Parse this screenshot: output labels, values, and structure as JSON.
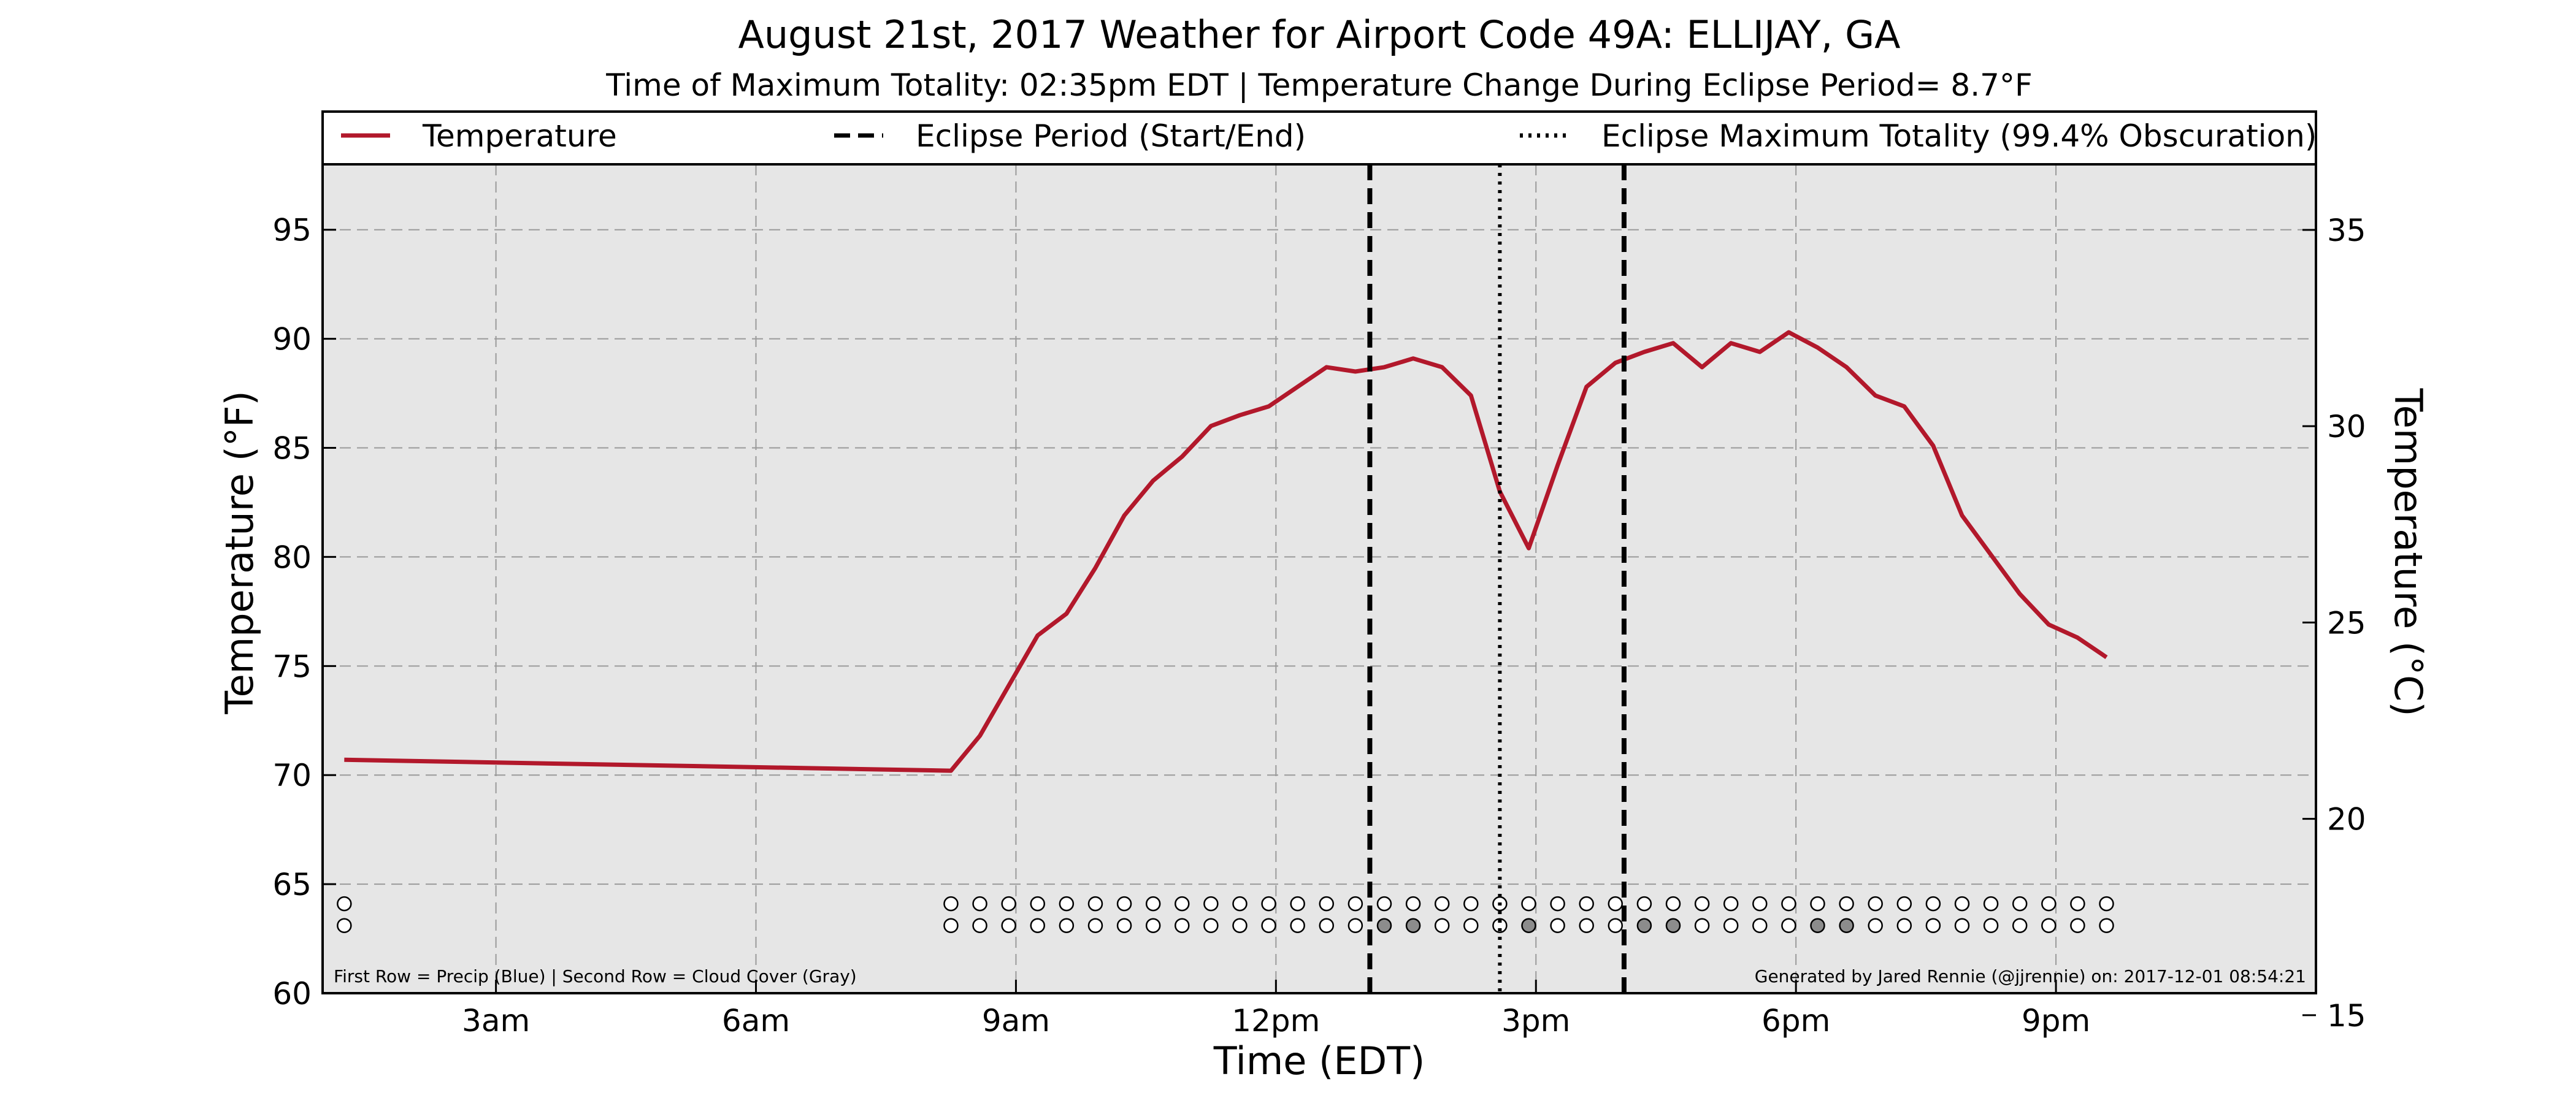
{
  "colors": {
    "background": "#ffffff",
    "plot_bg": "#e6e6e6",
    "temperature": "#b2182b",
    "grid": "#9a9a9a",
    "cloud_filled": "#8c8c8c"
  },
  "chart_data": {
    "type": "line",
    "title": "August 21st, 2017 Weather for Airport Code 49A: ELLIJAY, GA",
    "subtitle": "Time of Maximum Totality: 02:35pm EDT | Temperature Change During Eclipse Period= 8.7°F",
    "xlabel": "Time (EDT)",
    "ylabel": "Temperature (°F)",
    "ylabel_right": "Temperature (°C)",
    "xlim": [
      "1:00",
      "24:00"
    ],
    "ylim": [
      60,
      98
    ],
    "ylim_right_C": [
      15.56,
      36.67
    ],
    "x_ticks": [
      {
        "time": "3:00",
        "label": "3am"
      },
      {
        "time": "6:00",
        "label": "6am"
      },
      {
        "time": "9:00",
        "label": "9am"
      },
      {
        "time": "12:00",
        "label": "12pm"
      },
      {
        "time": "15:00",
        "label": "3pm"
      },
      {
        "time": "18:00",
        "label": "6pm"
      },
      {
        "time": "21:00",
        "label": "9pm"
      }
    ],
    "y_ticks": [
      60,
      65,
      70,
      75,
      80,
      85,
      90,
      95
    ],
    "y_ticks_right_C": [
      15,
      20,
      25,
      30,
      35
    ],
    "grid": true,
    "legend_position": "top",
    "legend": [
      {
        "label": "Temperature",
        "style": "solid"
      },
      {
        "label": "Eclipse Period (Start/End)",
        "style": "dashed"
      },
      {
        "label": "Eclipse Maximum Totality (99.4% Obscuration)",
        "style": "dotted"
      }
    ],
    "series": [
      {
        "name": "Temperature",
        "points": [
          [
            "1:15",
            70.7
          ],
          [
            "8:15",
            70.2
          ],
          [
            "8:35",
            71.8
          ],
          [
            "8:55",
            74.1
          ],
          [
            "9:15",
            76.4
          ],
          [
            "9:35",
            77.4
          ],
          [
            "9:55",
            79.5
          ],
          [
            "10:15",
            81.9
          ],
          [
            "10:35",
            83.5
          ],
          [
            "10:55",
            84.6
          ],
          [
            "11:15",
            86.0
          ],
          [
            "11:35",
            86.5
          ],
          [
            "11:55",
            86.9
          ],
          [
            "12:15",
            87.8
          ],
          [
            "12:35",
            88.7
          ],
          [
            "12:55",
            88.5
          ],
          [
            "13:15",
            88.7
          ],
          [
            "13:35",
            89.1
          ],
          [
            "13:55",
            88.7
          ],
          [
            "14:15",
            87.4
          ],
          [
            "14:35",
            83.0
          ],
          [
            "14:55",
            80.4
          ],
          [
            "15:15",
            84.2
          ],
          [
            "15:35",
            87.8
          ],
          [
            "15:55",
            88.9
          ],
          [
            "16:15",
            89.4
          ],
          [
            "16:35",
            89.8
          ],
          [
            "16:55",
            88.7
          ],
          [
            "17:15",
            89.8
          ],
          [
            "17:35",
            89.4
          ],
          [
            "17:55",
            90.3
          ],
          [
            "18:15",
            89.6
          ],
          [
            "18:35",
            88.7
          ],
          [
            "18:55",
            87.4
          ],
          [
            "19:15",
            86.9
          ],
          [
            "19:35",
            85.1
          ],
          [
            "19:55",
            81.9
          ],
          [
            "20:15",
            80.1
          ],
          [
            "20:35",
            78.3
          ],
          [
            "20:55",
            76.9
          ],
          [
            "21:15",
            76.3
          ],
          [
            "21:35",
            75.4
          ]
        ]
      }
    ],
    "eclipse_start": "13:05",
    "eclipse_end": "16:01",
    "eclipse_max": "14:35",
    "observations": {
      "times": [
        "1:15",
        "8:15",
        "8:35",
        "8:55",
        "9:15",
        "9:35",
        "9:55",
        "10:15",
        "10:35",
        "10:55",
        "11:15",
        "11:35",
        "11:55",
        "12:15",
        "12:35",
        "12:55",
        "13:15",
        "13:35",
        "13:55",
        "14:15",
        "14:35",
        "14:55",
        "15:15",
        "15:35",
        "15:55",
        "16:15",
        "16:35",
        "16:55",
        "17:15",
        "17:35",
        "17:55",
        "18:15",
        "18:35",
        "18:55",
        "19:15",
        "19:35",
        "19:55",
        "20:15",
        "20:35",
        "20:55",
        "21:15",
        "21:35"
      ],
      "precip": [
        0,
        0,
        0,
        0,
        0,
        0,
        0,
        0,
        0,
        0,
        0,
        0,
        0,
        0,
        0,
        0,
        0,
        0,
        0,
        0,
        0,
        0,
        0,
        0,
        0,
        0,
        0,
        0,
        0,
        0,
        0,
        0,
        0,
        0,
        0,
        0,
        0,
        0,
        0,
        0,
        0,
        0
      ],
      "cloud_cover": [
        0,
        0,
        0,
        0,
        0,
        0,
        0,
        0,
        0,
        0,
        0,
        0,
        0,
        0,
        0,
        0,
        1,
        1,
        0,
        0,
        0,
        1,
        0,
        0,
        0,
        1,
        1,
        0,
        0,
        0,
        0,
        1,
        1,
        0,
        0,
        0,
        0,
        0,
        0,
        0,
        0,
        0
      ]
    },
    "footnote_left": "First Row = Precip (Blue) | Second Row = Cloud Cover (Gray)",
    "footnote_right": "Generated by Jared Rennie (@jjrennie) on: 2017-12-01 08:54:21"
  }
}
